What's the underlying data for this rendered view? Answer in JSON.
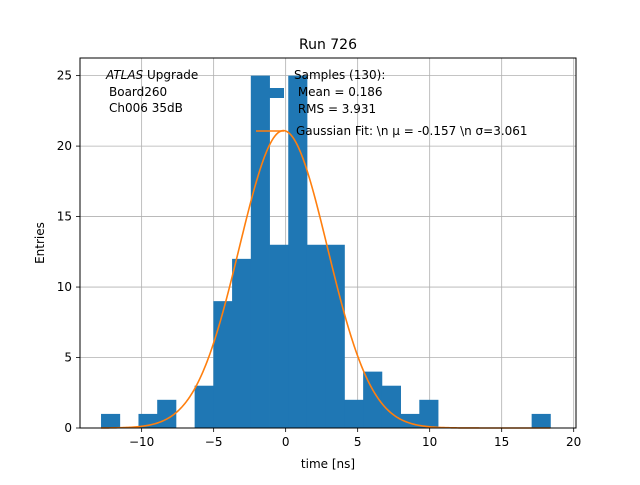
{
  "chart_data": {
    "type": "bar",
    "title": "Run 726",
    "xlabel": "time [ns]",
    "ylabel": "Entries",
    "xlim": [
      -14.28,
      20.16
    ],
    "ylim": [
      0,
      26.25
    ],
    "grid": true,
    "xticks": [
      -10,
      -5,
      0,
      5,
      10,
      15,
      20
    ],
    "xtick_labels": [
      "−10",
      "−5",
      "0",
      "5",
      "10",
      "15",
      "20"
    ],
    "yticks": [
      0,
      5,
      10,
      15,
      20,
      25
    ],
    "ytick_labels": [
      "0",
      "5",
      "10",
      "15",
      "20",
      "25"
    ],
    "bin_width": 1.3,
    "bins": [
      {
        "x0": -12.82,
        "value": 1
      },
      {
        "x0": -11.52,
        "value": 0
      },
      {
        "x0": -10.22,
        "value": 1
      },
      {
        "x0": -8.92,
        "value": 2
      },
      {
        "x0": -7.62,
        "value": 0
      },
      {
        "x0": -6.32,
        "value": 3
      },
      {
        "x0": -5.02,
        "value": 9
      },
      {
        "x0": -3.72,
        "value": 12
      },
      {
        "x0": -2.42,
        "value": 25
      },
      {
        "x0": -1.12,
        "value": 13
      },
      {
        "x0": 0.18,
        "value": 25
      },
      {
        "x0": 1.48,
        "value": 13
      },
      {
        "x0": 2.78,
        "value": 13
      },
      {
        "x0": 4.08,
        "value": 2
      },
      {
        "x0": 5.38,
        "value": 4
      },
      {
        "x0": 6.68,
        "value": 3
      },
      {
        "x0": 7.98,
        "value": 1
      },
      {
        "x0": 9.28,
        "value": 2
      },
      {
        "x0": 10.58,
        "value": 0
      },
      {
        "x0": 11.88,
        "value": 0
      },
      {
        "x0": 13.18,
        "value": 0
      },
      {
        "x0": 14.48,
        "value": 0
      },
      {
        "x0": 15.78,
        "value": 0
      },
      {
        "x0": 17.08,
        "value": 1
      }
    ],
    "series": [
      {
        "name": "Samples (130):\n Mean = 0.186\n RMS = 3.931",
        "type": "histogram",
        "color": "#1f77b4"
      },
      {
        "name": "Gaussian Fit: \\n μ = -0.157 \\n σ=3.061",
        "type": "line",
        "color": "#ff7f0e",
        "amplitude": 21.1,
        "mu": -0.157,
        "sigma": 3.061,
        "x_range": [
          -12.82,
          18.38
        ]
      }
    ],
    "annotation": {
      "italic": "ATLAS",
      "lines": [
        "ATLAS Upgrade",
        "Board260",
        "Ch006 35dB"
      ]
    },
    "legend_position": "top-right"
  }
}
